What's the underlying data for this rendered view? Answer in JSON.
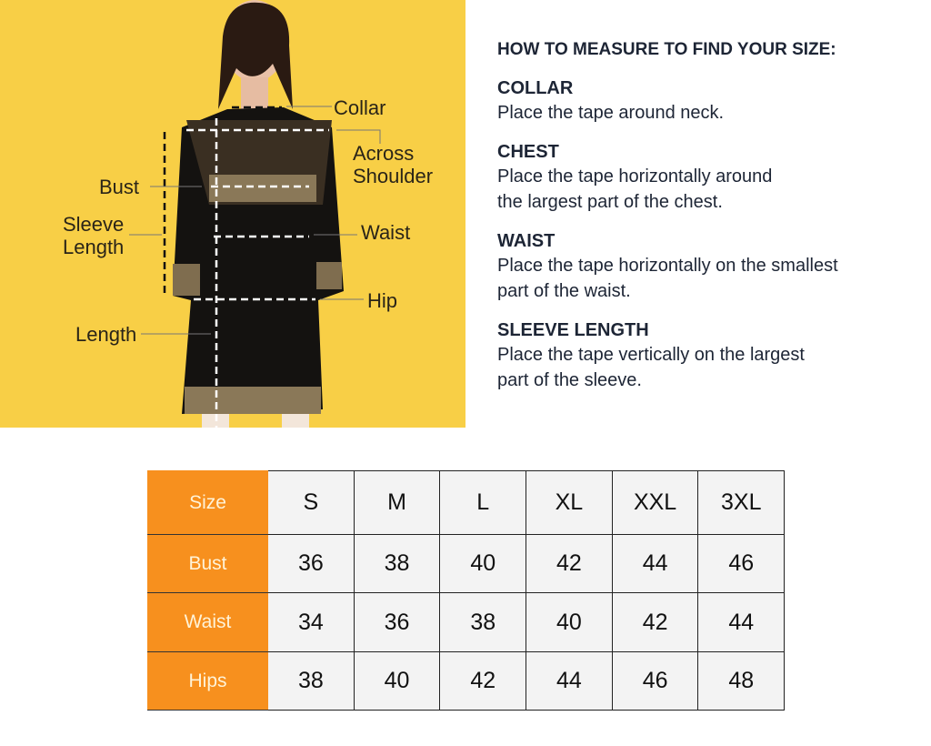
{
  "diagram": {
    "labels": {
      "collar": "Collar",
      "across_shoulder_1": "Across",
      "across_shoulder_2": "Shoulder",
      "bust": "Bust",
      "sleeve_1": "Sleeve",
      "sleeve_2": "Length",
      "waist": "Waist",
      "hip": "Hip",
      "length": "Length"
    },
    "background": "#f8cf46"
  },
  "guide": {
    "title": "HOW TO MEASURE TO FIND YOUR SIZE:",
    "sections": [
      {
        "heading": "COLLAR",
        "lines": [
          "Place the tape around neck."
        ]
      },
      {
        "heading": "CHEST",
        "lines": [
          "Place the tape horizontally around",
          "the largest part of the chest."
        ]
      },
      {
        "heading": "WAIST",
        "lines": [
          "Place the tape horizontally on the smallest",
          "part of the waist."
        ]
      },
      {
        "heading": "SLEEVE LENGTH",
        "lines": [
          "Place the tape vertically on the largest",
          "part of the sleeve."
        ]
      }
    ]
  },
  "size_table": {
    "header_color": "#f7901e",
    "columns": [
      "Size",
      "S",
      "M",
      "L",
      "XL",
      "XXL",
      "3XL"
    ],
    "rows": [
      {
        "label": "Bust",
        "values": [
          "36",
          "38",
          "40",
          "42",
          "44",
          "46"
        ]
      },
      {
        "label": "Waist",
        "values": [
          "34",
          "36",
          "38",
          "40",
          "42",
          "44"
        ]
      },
      {
        "label": "Hips",
        "values": [
          "38",
          "40",
          "42",
          "44",
          "46",
          "48"
        ]
      }
    ]
  }
}
